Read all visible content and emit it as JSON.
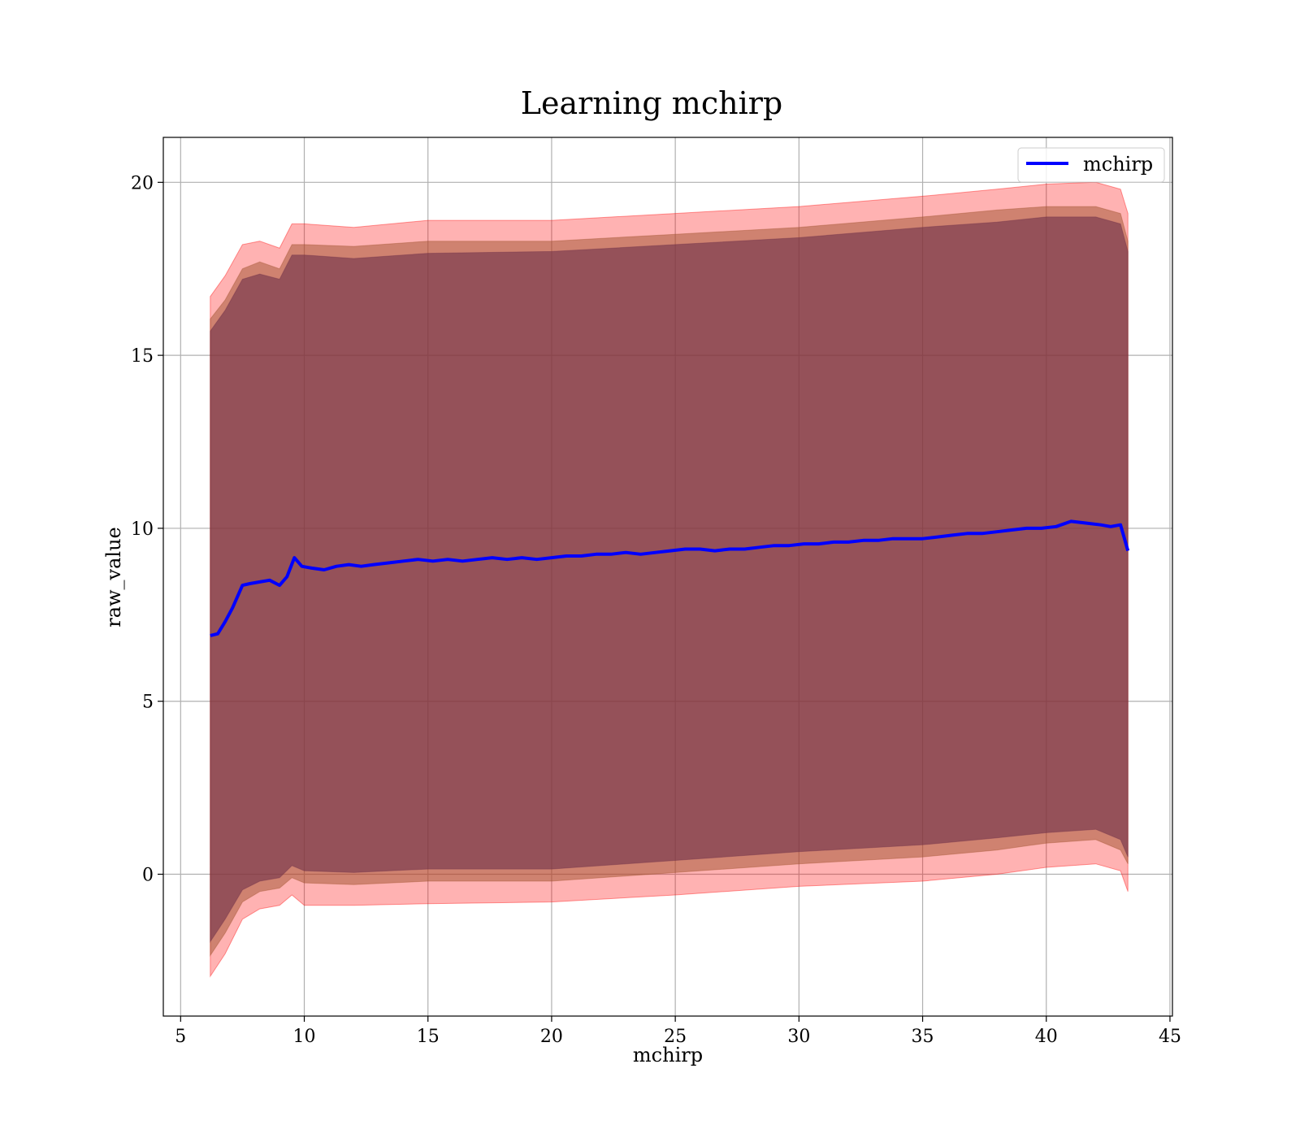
{
  "chart_data": {
    "type": "line",
    "title": "Learning mchirp",
    "xlabel": "mchirp",
    "ylabel": "raw_value",
    "xlim": [
      4.3,
      45.1
    ],
    "ylim": [
      -4.1,
      21.3
    ],
    "xticks": [
      5,
      10,
      15,
      20,
      25,
      30,
      35,
      40,
      45
    ],
    "yticks": [
      0,
      5,
      10,
      15,
      20
    ],
    "grid": true,
    "legend": {
      "placement": "top-right",
      "entries": [
        "mchirp"
      ]
    },
    "series": [
      {
        "name": "mchirp",
        "color": "#0000ff",
        "x": [
          6.2,
          6.5,
          6.8,
          7.1,
          7.5,
          7.8,
          8.2,
          8.6,
          9.0,
          9.3,
          9.6,
          9.9,
          10.3,
          10.8,
          11.3,
          11.8,
          12.3,
          12.8,
          13.4,
          14.0,
          14.6,
          15.2,
          15.8,
          16.4,
          17.0,
          17.6,
          18.2,
          18.8,
          19.4,
          20.0,
          20.6,
          21.2,
          21.8,
          22.4,
          23.0,
          23.6,
          24.2,
          24.8,
          25.4,
          26.0,
          26.6,
          27.2,
          27.8,
          28.4,
          29.0,
          29.6,
          30.2,
          30.8,
          31.4,
          32.0,
          32.6,
          33.2,
          33.8,
          34.4,
          35.0,
          35.6,
          36.2,
          36.8,
          37.4,
          38.0,
          38.6,
          39.2,
          39.8,
          40.4,
          41.0,
          41.6,
          42.2,
          42.6,
          43.0,
          43.3
        ],
        "y": [
          6.9,
          6.95,
          7.3,
          7.7,
          8.35,
          8.4,
          8.45,
          8.5,
          8.35,
          8.6,
          9.15,
          8.9,
          8.85,
          8.8,
          8.9,
          8.95,
          8.9,
          8.95,
          9.0,
          9.05,
          9.1,
          9.05,
          9.1,
          9.05,
          9.1,
          9.15,
          9.1,
          9.15,
          9.1,
          9.15,
          9.2,
          9.2,
          9.25,
          9.25,
          9.3,
          9.25,
          9.3,
          9.35,
          9.4,
          9.4,
          9.35,
          9.4,
          9.4,
          9.45,
          9.5,
          9.5,
          9.55,
          9.55,
          9.6,
          9.6,
          9.65,
          9.65,
          9.7,
          9.7,
          9.7,
          9.75,
          9.8,
          9.85,
          9.85,
          9.9,
          9.95,
          10.0,
          10.0,
          10.05,
          10.2,
          10.15,
          10.1,
          10.05,
          10.1,
          9.35
        ]
      }
    ],
    "bands": [
      {
        "color": "#ff0000",
        "opacity": 0.3,
        "x": [
          6.2,
          6.8,
          7.5,
          8.2,
          9.0,
          9.5,
          10.0,
          12.0,
          15.0,
          20.0,
          25.0,
          30.0,
          35.0,
          38.0,
          40.0,
          42.0,
          43.0,
          43.3
        ],
        "upper": [
          16.7,
          17.3,
          18.2,
          18.3,
          18.1,
          18.8,
          18.8,
          18.7,
          18.9,
          18.9,
          19.1,
          19.3,
          19.6,
          19.8,
          19.95,
          20.0,
          19.8,
          19.1
        ],
        "lower": [
          -2.95,
          -2.3,
          -1.3,
          -1.0,
          -0.9,
          -0.6,
          -0.9,
          -0.9,
          -0.85,
          -0.8,
          -0.6,
          -0.35,
          -0.2,
          0.0,
          0.2,
          0.3,
          0.1,
          -0.5
        ]
      },
      {
        "color": "#a0522d",
        "opacity": 0.5,
        "x": [
          6.2,
          6.8,
          7.5,
          8.2,
          9.0,
          9.5,
          10.0,
          12.0,
          15.0,
          20.0,
          25.0,
          30.0,
          35.0,
          38.0,
          40.0,
          42.0,
          43.0,
          43.3
        ],
        "upper": [
          16.05,
          16.6,
          17.5,
          17.7,
          17.5,
          18.2,
          18.2,
          18.15,
          18.3,
          18.3,
          18.5,
          18.7,
          19.0,
          19.2,
          19.3,
          19.3,
          19.1,
          18.3
        ],
        "lower": [
          -2.35,
          -1.7,
          -0.8,
          -0.5,
          -0.4,
          -0.1,
          -0.25,
          -0.3,
          -0.2,
          -0.2,
          0.05,
          0.3,
          0.5,
          0.7,
          0.9,
          1.0,
          0.7,
          0.3
        ]
      },
      {
        "color": "#6e3049",
        "opacity": 0.6,
        "x": [
          6.2,
          6.8,
          7.5,
          8.2,
          9.0,
          9.5,
          10.0,
          12.0,
          15.0,
          20.0,
          25.0,
          30.0,
          35.0,
          38.0,
          40.0,
          42.0,
          43.0,
          43.3
        ],
        "upper": [
          15.7,
          16.3,
          17.2,
          17.35,
          17.2,
          17.9,
          17.9,
          17.8,
          17.95,
          18.0,
          18.2,
          18.4,
          18.7,
          18.85,
          19.0,
          19.0,
          18.8,
          18.0
        ],
        "lower": [
          -1.95,
          -1.3,
          -0.45,
          -0.2,
          -0.1,
          0.25,
          0.1,
          0.05,
          0.15,
          0.15,
          0.4,
          0.65,
          0.85,
          1.05,
          1.2,
          1.3,
          1.0,
          0.5
        ]
      }
    ]
  }
}
